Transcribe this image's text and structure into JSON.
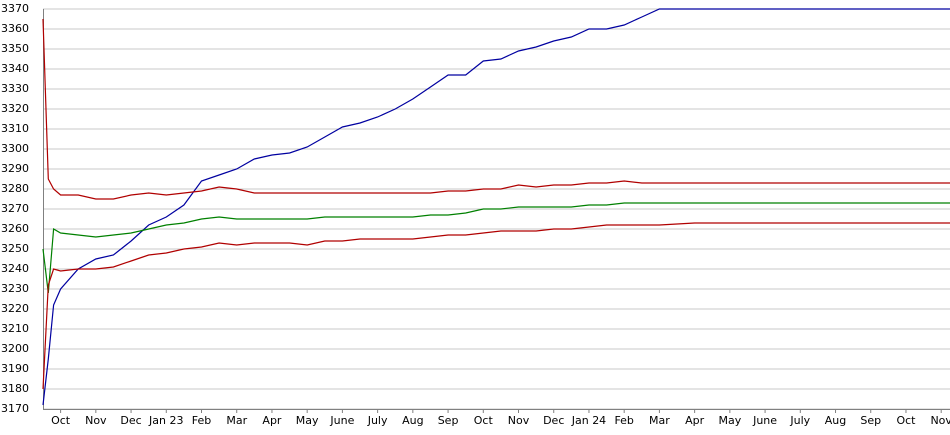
{
  "chart_data": {
    "type": "line",
    "x": [
      0.5,
      0.65,
      0.8,
      1,
      1.5,
      2,
      2.5,
      3,
      3.5,
      4,
      4.5,
      5,
      5.5,
      6,
      6.5,
      7,
      7.5,
      8,
      8.5,
      9,
      9.5,
      10,
      10.5,
      11,
      11.5,
      12,
      12.5,
      13,
      13.5,
      14,
      14.5,
      15,
      15.5,
      16,
      16.5,
      17,
      17.5,
      18,
      19,
      20,
      21,
      22,
      23,
      24,
      25,
      26,
      26.25
    ],
    "xlim": [
      0.5,
      26.25
    ],
    "xticks": [
      {
        "value": 1,
        "label": "Oct"
      },
      {
        "value": 2,
        "label": "Nov"
      },
      {
        "value": 3,
        "label": "Dec"
      },
      {
        "value": 4,
        "label": "Jan 23"
      },
      {
        "value": 5,
        "label": "Feb"
      },
      {
        "value": 6,
        "label": "Mar"
      },
      {
        "value": 7,
        "label": "Apr"
      },
      {
        "value": 8,
        "label": "May"
      },
      {
        "value": 9,
        "label": "June"
      },
      {
        "value": 10,
        "label": "July"
      },
      {
        "value": 11,
        "label": "Aug"
      },
      {
        "value": 12,
        "label": "Sep"
      },
      {
        "value": 13,
        "label": "Oct"
      },
      {
        "value": 14,
        "label": "Nov"
      },
      {
        "value": 15,
        "label": "Dec"
      },
      {
        "value": 16,
        "label": "Jan 24"
      },
      {
        "value": 17,
        "label": "Feb"
      },
      {
        "value": 18,
        "label": "Mar"
      },
      {
        "value": 19,
        "label": "Apr"
      },
      {
        "value": 20,
        "label": "May"
      },
      {
        "value": 21,
        "label": "June"
      },
      {
        "value": 22,
        "label": "July"
      },
      {
        "value": 23,
        "label": "Aug"
      },
      {
        "value": 24,
        "label": "Sep"
      },
      {
        "value": 25,
        "label": "Oct"
      },
      {
        "value": 26,
        "label": "Nov"
      }
    ],
    "ylim": [
      3170,
      3370
    ],
    "yticks": [
      3170,
      3180,
      3190,
      3200,
      3210,
      3220,
      3230,
      3240,
      3250,
      3260,
      3270,
      3280,
      3290,
      3300,
      3310,
      3320,
      3330,
      3340,
      3350,
      3360,
      3370
    ],
    "grid": true,
    "series": [
      {
        "color": "#0000a0",
        "values": [
          3172,
          3195,
          3222,
          3230,
          3240,
          3245,
          3247,
          3254,
          3262,
          3266,
          3272,
          3284,
          3287,
          3290,
          3295,
          3297,
          3298,
          3301,
          3306,
          3311,
          3313,
          3316,
          3320,
          3325,
          3331,
          3337,
          3337,
          3344,
          3345,
          3349,
          3351,
          3354,
          3356,
          3360,
          3360,
          3362,
          3366,
          3370,
          3370,
          3370,
          3370,
          3370,
          3370,
          3370,
          3370,
          3370,
          3370
        ]
      },
      {
        "color": "#b00000",
        "values": [
          3365,
          3285,
          3280,
          3277,
          3277,
          3275,
          3275,
          3277,
          3278,
          3277,
          3278,
          3279,
          3281,
          3280,
          3278,
          3278,
          3278,
          3278,
          3278,
          3278,
          3278,
          3278,
          3278,
          3278,
          3278,
          3279,
          3279,
          3280,
          3280,
          3282,
          3281,
          3282,
          3282,
          3283,
          3283,
          3284,
          3283,
          3283,
          3283,
          3283,
          3283,
          3283,
          3283,
          3283,
          3283,
          3283,
          3283
        ]
      },
      {
        "color": "#008000",
        "values": [
          3250,
          3228,
          3260,
          3258,
          3257,
          3256,
          3257,
          3258,
          3260,
          3262,
          3263,
          3265,
          3266,
          3265,
          3265,
          3265,
          3265,
          3265,
          3266,
          3266,
          3266,
          3266,
          3266,
          3266,
          3267,
          3267,
          3268,
          3270,
          3270,
          3271,
          3271,
          3271,
          3271,
          3272,
          3272,
          3273,
          3273,
          3273,
          3273,
          3273,
          3273,
          3273,
          3273,
          3273,
          3273,
          3273,
          3273
        ]
      },
      {
        "color": "#b00000",
        "values": [
          3180,
          3232,
          3240,
          3239,
          3240,
          3240,
          3241,
          3244,
          3247,
          3248,
          3250,
          3251,
          3253,
          3252,
          3253,
          3253,
          3253,
          3252,
          3254,
          3254,
          3255,
          3255,
          3255,
          3255,
          3256,
          3257,
          3257,
          3258,
          3259,
          3259,
          3259,
          3260,
          3260,
          3261,
          3262,
          3262,
          3262,
          3262,
          3263,
          3263,
          3263,
          3263,
          3263,
          3263,
          3263,
          3263,
          3263
        ]
      }
    ]
  }
}
